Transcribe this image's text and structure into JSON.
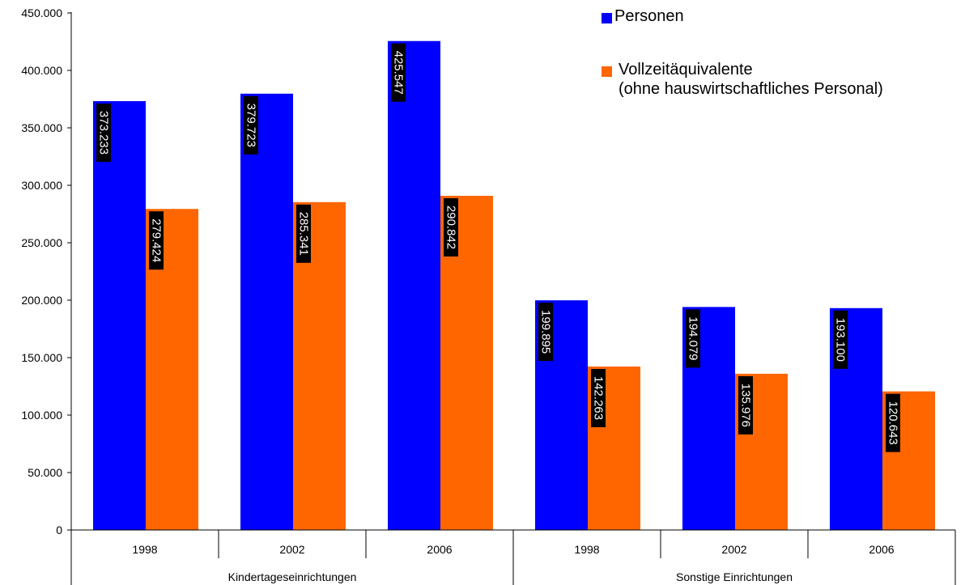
{
  "chart_data": {
    "type": "bar",
    "categories": [
      {
        "label": "1998",
        "group": "Kindertageseinrichtungen"
      },
      {
        "label": "2002",
        "group": "Kindertageseinrichtungen"
      },
      {
        "label": "2006",
        "group": "Kindertageseinrichtungen"
      },
      {
        "label": "1998",
        "group": "Sonstige Einrichtungen"
      },
      {
        "label": "2002",
        "group": "Sonstige Einrichtungen"
      },
      {
        "label": "2006",
        "group": "Sonstige Einrichtungen"
      }
    ],
    "groups": [
      "Kindertageseinrichtungen",
      "Sonstige Einrichtungen"
    ],
    "series": [
      {
        "name": "Personen",
        "color": "#0000FF",
        "values": [
          373233,
          379723,
          425547,
          199895,
          194079,
          193100
        ],
        "labels": [
          "373.233",
          "379.723",
          "425.547",
          "199.895",
          "194.079",
          "193.100"
        ]
      },
      {
        "name": "Vollzeitäquivalente",
        "name_line2": "(ohne hauswirtschaftliches Personal)",
        "color": "#FF6600",
        "values": [
          279424,
          285341,
          290842,
          142263,
          135976,
          120643
        ],
        "labels": [
          "279.424",
          "285.341",
          "290.842",
          "142.263",
          "135.976",
          "120.643"
        ]
      }
    ],
    "yticks": [
      "0",
      "50.000",
      "100.000",
      "150.000",
      "200.000",
      "250.000",
      "300.000",
      "350.000",
      "400.000",
      "450.000"
    ],
    "ylim": [
      0,
      450000
    ],
    "grid": false,
    "legend_position": "top-right",
    "title": "",
    "xlabel": "",
    "ylabel": ""
  }
}
